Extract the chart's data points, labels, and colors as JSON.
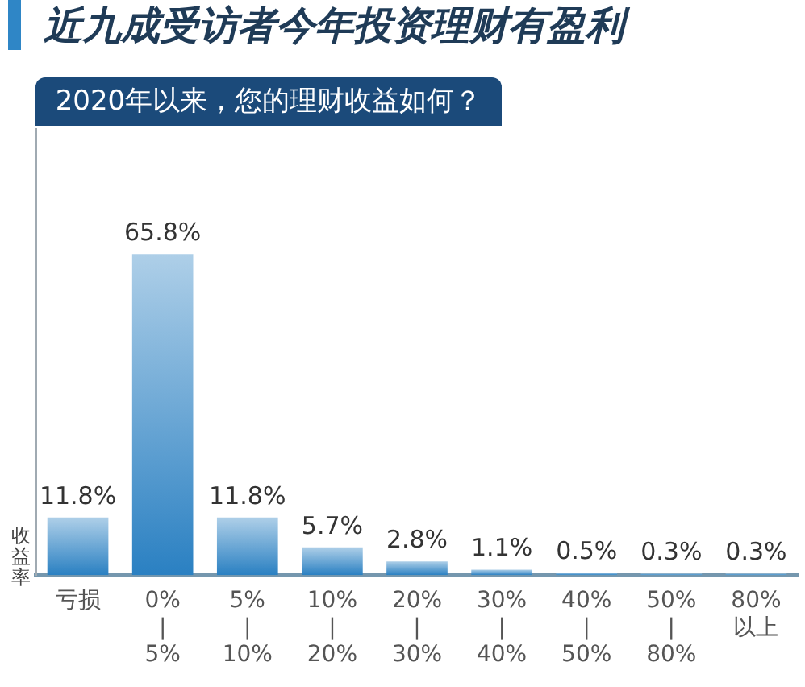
{
  "chart_data": {
    "type": "bar",
    "title": "近九成受访者今年投资理财有盈利",
    "subtitle": "2020年以来，您的理财收益如何？",
    "xlabel": "收益率",
    "categories": [
      "亏损",
      "0%\n|\n5%",
      "5%\n|\n10%",
      "10%\n|\n20%",
      "20%\n|\n30%",
      "30%\n|\n40%",
      "40%\n|\n50%",
      "50%\n|\n80%",
      "80%\n以上"
    ],
    "values": [
      11.8,
      65.8,
      11.8,
      5.7,
      2.8,
      1.1,
      0.5,
      0.3,
      0.3
    ],
    "value_labels": [
      "11.8%",
      "65.8%",
      "11.8%",
      "5.7%",
      "2.8%",
      "1.1%",
      "0.5%",
      "0.3%",
      "0.3%"
    ],
    "color": "#2a80c2"
  }
}
